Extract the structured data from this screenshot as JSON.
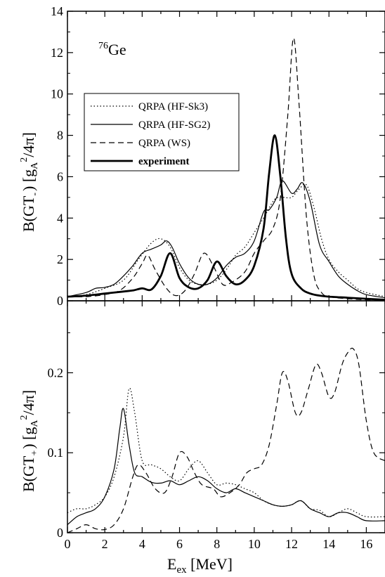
{
  "figure": {
    "nucleus_mass": "76",
    "nucleus_symbol": "Ge"
  },
  "chart_data": [
    {
      "type": "line",
      "panel": "top",
      "ylabel_main": "B(GT",
      "ylabel_sub": "-",
      "ylabel_units": "[g",
      "ylabel_units_sub": "A",
      "ylabel_units_sup": "2",
      "ylabel_units_tail": "/4π]",
      "xlim": [
        0,
        17
      ],
      "ylim": [
        0,
        14
      ],
      "yticks": [
        0,
        2,
        4,
        6,
        8,
        10,
        12,
        14
      ],
      "grid": false,
      "legend_position": "upper-left",
      "series": [
        {
          "name": "QRPA (HF-Sk3)",
          "style": "dotted",
          "width": 1.2,
          "x": [
            0,
            1,
            2,
            3,
            3.8,
            4.5,
            5,
            5.5,
            6,
            6.5,
            7,
            7.5,
            8,
            8.5,
            9,
            9.5,
            10,
            10.5,
            11,
            11.3,
            11.6,
            12,
            12.4,
            12.8,
            13.2,
            13.6,
            14,
            14.5,
            15,
            15.5,
            16,
            17
          ],
          "y": [
            0.2,
            0.3,
            0.6,
            1.0,
            2.0,
            2.8,
            3.0,
            2.6,
            1.6,
            1.0,
            0.8,
            0.8,
            1.0,
            1.5,
            2.2,
            2.6,
            3.3,
            4.0,
            4.8,
            5.0,
            5.0,
            5.0,
            5.4,
            5.6,
            4.5,
            3.0,
            2.0,
            1.4,
            1.0,
            0.6,
            0.4,
            0.2
          ]
        },
        {
          "name": "QRPA (HF-SG2)",
          "style": "solid",
          "width": 1.2,
          "x": [
            0,
            1,
            1.5,
            2,
            2.5,
            3,
            3.5,
            4,
            4.5,
            5,
            5.3,
            5.6,
            6,
            6.5,
            7,
            7.5,
            8,
            8.5,
            9,
            9.5,
            10,
            10.5,
            10.8,
            11.2,
            11.5,
            12,
            12.3,
            12.6,
            13,
            13.5,
            14,
            14.5,
            15,
            15.5,
            16,
            17
          ],
          "y": [
            0.2,
            0.4,
            0.6,
            0.65,
            0.8,
            1.2,
            1.7,
            2.3,
            2.5,
            2.7,
            2.9,
            2.6,
            1.8,
            1.1,
            0.8,
            0.8,
            1.1,
            1.7,
            2.1,
            2.3,
            2.9,
            4.3,
            4.4,
            5.0,
            5.8,
            5.2,
            5.4,
            5.7,
            4.8,
            2.7,
            1.9,
            1.2,
            0.8,
            0.5,
            0.3,
            0.15
          ]
        },
        {
          "name": "QRPA (WS)",
          "style": "dashed",
          "width": 1.2,
          "x": [
            0,
            1,
            2,
            2.8,
            3.5,
            4,
            4.3,
            4.7,
            5.3,
            5.8,
            6.3,
            6.8,
            7.3,
            7.8,
            8.3,
            8.8,
            9.5,
            10,
            10.5,
            11,
            11.4,
            11.8,
            12.1,
            12.4,
            12.8,
            13.2,
            13.6,
            14,
            15,
            16,
            17
          ],
          "y": [
            0.2,
            0.2,
            0.3,
            0.5,
            1.1,
            1.8,
            2.2,
            1.5,
            0.6,
            0.25,
            0.5,
            1.3,
            2.3,
            1.7,
            0.8,
            0.9,
            1.4,
            2.3,
            2.9,
            3.5,
            5.0,
            9.0,
            12.7,
            9.5,
            4.0,
            1.2,
            0.4,
            0.2,
            0.1,
            0.05,
            0.05
          ]
        },
        {
          "name": "experiment",
          "style": "solid",
          "width": 2.8,
          "x": [
            0,
            1,
            2,
            3,
            3.5,
            4,
            4.5,
            5,
            5.5,
            6,
            6.5,
            7,
            7.5,
            8,
            8.5,
            9,
            9.5,
            10,
            10.5,
            10.8,
            11.1,
            11.4,
            11.7,
            12,
            12.5,
            13,
            13.5,
            14,
            15,
            16,
            17
          ],
          "y": [
            0.2,
            0.25,
            0.35,
            0.45,
            0.5,
            0.6,
            0.55,
            1.2,
            2.3,
            1.1,
            0.65,
            0.6,
            1.0,
            1.9,
            1.2,
            0.8,
            1.0,
            1.7,
            3.5,
            6.2,
            8.0,
            6.0,
            3.0,
            1.3,
            0.6,
            0.35,
            0.25,
            0.2,
            0.15,
            0.1,
            0.05
          ]
        }
      ]
    },
    {
      "type": "line",
      "panel": "bottom",
      "xlabel_main": "E",
      "xlabel_sub": "ex",
      "xlabel_tail": " [MeV]",
      "ylabel_main": "B(GT",
      "ylabel_sub": "+",
      "ylabel_units": "[g",
      "ylabel_units_sub": "A",
      "ylabel_units_sup": "2",
      "ylabel_units_tail": "/4π]",
      "xlim": [
        0,
        17
      ],
      "ylim": [
        0,
        0.29
      ],
      "xticks": [
        0,
        2,
        4,
        6,
        8,
        10,
        12,
        14,
        16
      ],
      "yticks": [
        0,
        0.1,
        0.2
      ],
      "ytick_labels": [
        "0",
        "0.1",
        "0.2"
      ],
      "grid": false,
      "series": [
        {
          "name": "QRPA (HF-Sk3)",
          "style": "dotted",
          "width": 1.2,
          "x": [
            0,
            0.5,
            1,
            1.5,
            2,
            2.5,
            3,
            3.3,
            3.6,
            4,
            4.5,
            5,
            5.5,
            6,
            6.5,
            7,
            7.5,
            8,
            8.5,
            9,
            9.5,
            10,
            10.5,
            11,
            11.5,
            12,
            12.5,
            13,
            13.5,
            14,
            14.5,
            15,
            15.5,
            16,
            17
          ],
          "y": [
            0.025,
            0.03,
            0.03,
            0.035,
            0.045,
            0.07,
            0.12,
            0.18,
            0.15,
            0.09,
            0.085,
            0.08,
            0.07,
            0.065,
            0.08,
            0.09,
            0.075,
            0.06,
            0.062,
            0.06,
            0.055,
            0.05,
            0.04,
            0.035,
            0.033,
            0.035,
            0.04,
            0.03,
            0.028,
            0.02,
            0.025,
            0.03,
            0.025,
            0.02,
            0.02
          ]
        },
        {
          "name": "QRPA (HF-SG2)",
          "style": "solid",
          "width": 1.2,
          "x": [
            0,
            0.5,
            1,
            1.5,
            2,
            2.5,
            2.8,
            3,
            3.3,
            3.6,
            4,
            4.5,
            5,
            5.5,
            6,
            6.5,
            7,
            7.5,
            8,
            8.5,
            9,
            9.5,
            10,
            10.5,
            11,
            11.5,
            12,
            12.5,
            13,
            13.5,
            14,
            14.5,
            15,
            15.5,
            16,
            17
          ],
          "y": [
            0.01,
            0.02,
            0.025,
            0.03,
            0.045,
            0.08,
            0.13,
            0.155,
            0.11,
            0.075,
            0.07,
            0.063,
            0.062,
            0.065,
            0.06,
            0.065,
            0.07,
            0.065,
            0.055,
            0.05,
            0.055,
            0.05,
            0.045,
            0.04,
            0.035,
            0.033,
            0.035,
            0.04,
            0.03,
            0.025,
            0.02,
            0.025,
            0.025,
            0.02,
            0.015,
            0.015
          ]
        },
        {
          "name": "QRPA (WS)",
          "style": "dashed",
          "width": 1.2,
          "x": [
            0,
            0.5,
            1,
            1.5,
            2,
            2.5,
            3,
            3.5,
            3.8,
            4.2,
            4.7,
            5.2,
            5.6,
            6,
            6.4,
            6.8,
            7.2,
            7.8,
            8.2,
            8.7,
            9.2,
            9.6,
            10,
            10.4,
            10.8,
            11.2,
            11.5,
            11.8,
            12.2,
            12.5,
            12.9,
            13.3,
            13.6,
            14,
            14.3,
            14.7,
            15,
            15.3,
            15.6,
            16,
            16.4,
            17
          ],
          "y": [
            0,
            0.005,
            0.01,
            0.005,
            0.004,
            0.01,
            0.03,
            0.07,
            0.085,
            0.075,
            0.055,
            0.05,
            0.07,
            0.1,
            0.095,
            0.075,
            0.06,
            0.055,
            0.045,
            0.05,
            0.06,
            0.075,
            0.08,
            0.085,
            0.11,
            0.16,
            0.2,
            0.19,
            0.15,
            0.15,
            0.18,
            0.21,
            0.2,
            0.17,
            0.175,
            0.21,
            0.225,
            0.23,
            0.21,
            0.14,
            0.1,
            0.09
          ]
        }
      ]
    }
  ],
  "legend": {
    "entries": [
      "QRPA (HF-Sk3)",
      "QRPA (HF-SG2)",
      "QRPA (WS)",
      "experiment"
    ]
  }
}
